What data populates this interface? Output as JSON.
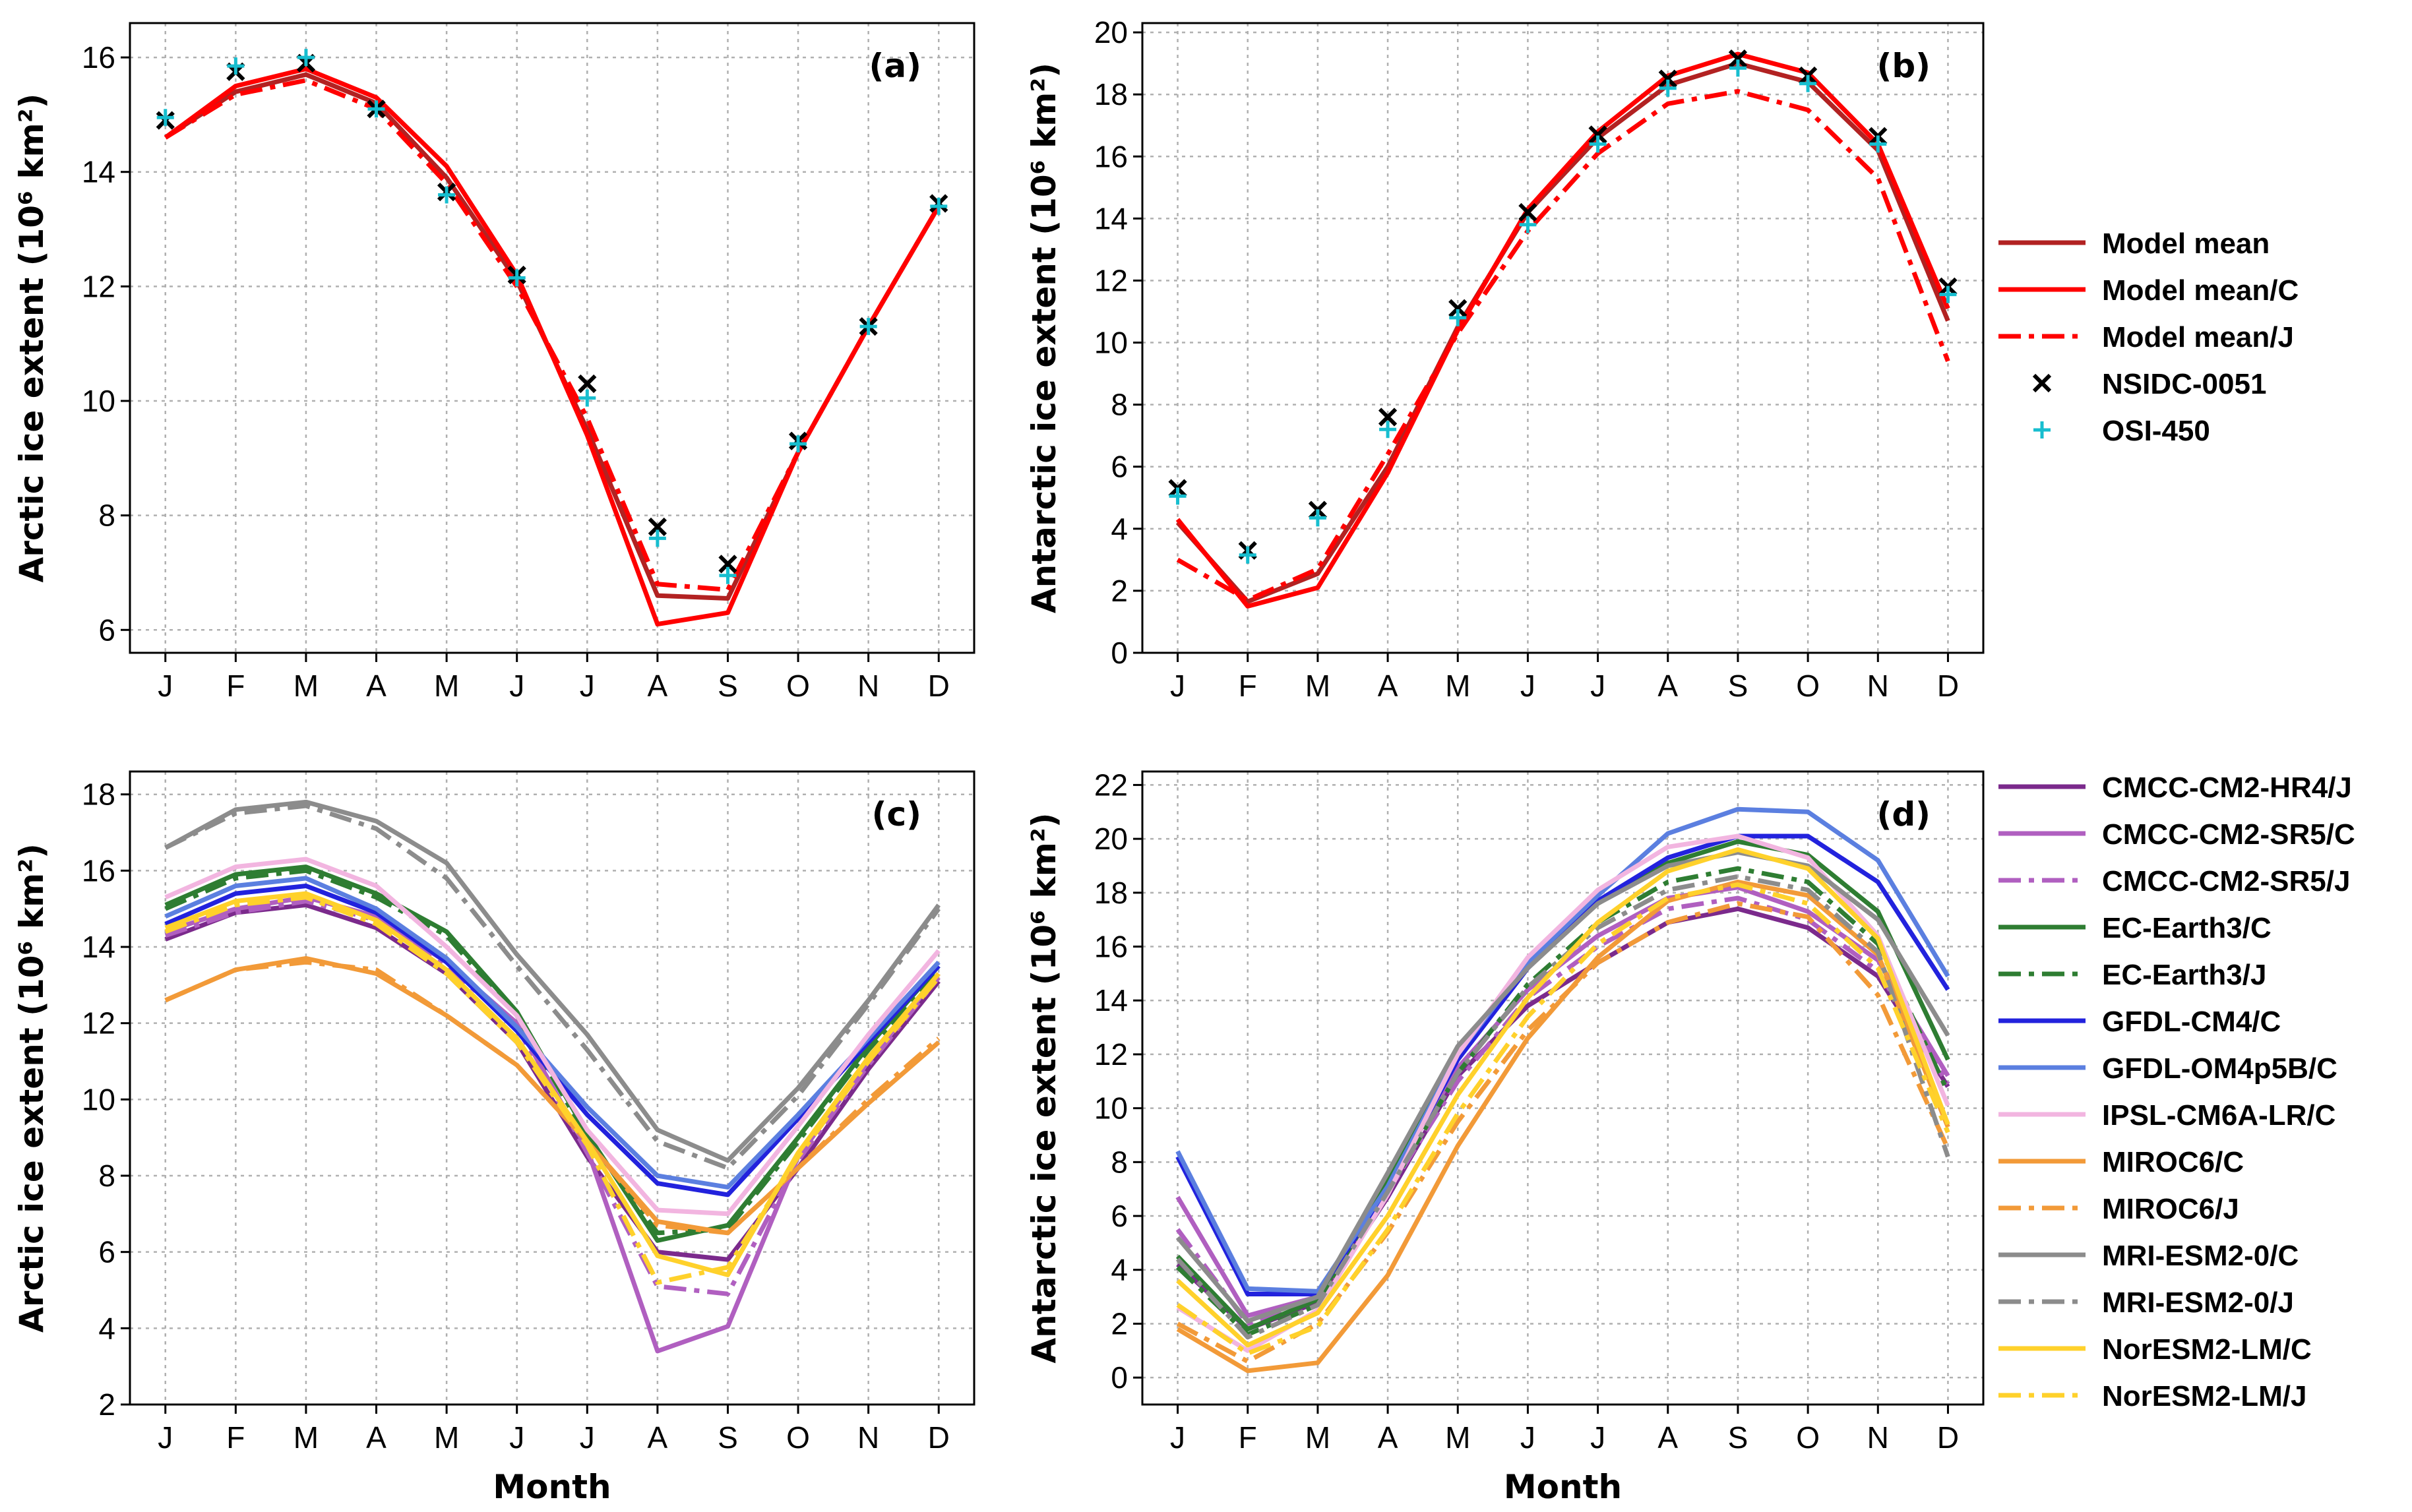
{
  "colors": {
    "model_mean": "#b22222",
    "model_mean_c": "#ff0000",
    "model_mean_j": "#ff0000",
    "nsidc": "#000000",
    "osi": "#17becf"
  },
  "chart_data": [
    {
      "id": "a",
      "panel_label": "(a)",
      "type": "line",
      "categories": [
        "J",
        "F",
        "M",
        "A",
        "M",
        "J",
        "J",
        "A",
        "S",
        "O",
        "N",
        "D"
      ],
      "xlabel": "",
      "ylabel": "Arctic ice extent (10⁶ km²)",
      "ylim": [
        5.6,
        16.6
      ],
      "yticks": [
        6,
        8,
        10,
        12,
        14,
        16
      ],
      "grid": true,
      "series": [
        {
          "name": "Model mean",
          "color": "#b22222",
          "dash": "solid",
          "values": [
            14.6,
            15.4,
            15.7,
            15.2,
            13.9,
            12.1,
            9.5,
            6.6,
            6.55,
            9.1,
            11.3,
            13.4
          ]
        },
        {
          "name": "Model mean/C",
          "color": "#ff0000",
          "dash": "solid",
          "values": [
            14.6,
            15.5,
            15.8,
            15.3,
            14.1,
            12.2,
            9.4,
            6.1,
            6.3,
            9.1,
            11.3,
            13.4
          ]
        },
        {
          "name": "Model mean/J",
          "color": "#ff0000",
          "dash": "dashdot",
          "values": [
            14.6,
            15.35,
            15.6,
            15.1,
            13.8,
            12.0,
            9.7,
            6.8,
            6.7,
            9.1,
            11.3,
            13.4
          ]
        }
      ],
      "markers": [
        {
          "name": "NSIDC-0051",
          "symbol": "x",
          "color": "#000000",
          "values": [
            14.9,
            15.75,
            15.9,
            15.1,
            13.65,
            12.2,
            10.3,
            7.8,
            7.15,
            9.3,
            11.3,
            13.45
          ]
        },
        {
          "name": "OSI-450",
          "symbol": "+",
          "color": "#17becf",
          "values": [
            14.95,
            15.85,
            16.0,
            15.1,
            13.6,
            12.15,
            10.05,
            7.6,
            6.95,
            9.25,
            11.3,
            13.4
          ]
        }
      ]
    },
    {
      "id": "b",
      "panel_label": "(b)",
      "type": "line",
      "categories": [
        "J",
        "F",
        "M",
        "A",
        "M",
        "J",
        "J",
        "A",
        "S",
        "O",
        "N",
        "D"
      ],
      "xlabel": "",
      "ylabel": "Antarctic ice extent (10⁶ km²)",
      "ylim": [
        0,
        20.3
      ],
      "yticks": [
        0,
        2,
        4,
        6,
        8,
        10,
        12,
        14,
        16,
        18,
        20
      ],
      "grid": true,
      "series": [
        {
          "name": "Model mean",
          "color": "#b22222",
          "dash": "solid",
          "values": [
            4.2,
            1.65,
            2.55,
            6.0,
            10.5,
            14.2,
            16.6,
            18.3,
            19.0,
            18.4,
            16.2,
            10.7
          ]
        },
        {
          "name": "Model mean/C",
          "color": "#ff0000",
          "dash": "solid",
          "values": [
            4.3,
            1.5,
            2.1,
            5.8,
            10.4,
            14.3,
            16.8,
            18.6,
            19.3,
            18.7,
            16.4,
            11.1
          ]
        },
        {
          "name": "Model mean/J",
          "color": "#ff0000",
          "dash": "dashdot",
          "values": [
            3.0,
            1.7,
            2.7,
            6.4,
            10.3,
            13.6,
            16.1,
            17.7,
            18.1,
            17.5,
            15.3,
            9.4
          ]
        }
      ],
      "markers": [
        {
          "name": "NSIDC-0051",
          "symbol": "x",
          "color": "#000000",
          "values": [
            5.3,
            3.3,
            4.6,
            7.6,
            11.1,
            14.2,
            16.7,
            18.5,
            19.15,
            18.6,
            16.65,
            11.8
          ]
        },
        {
          "name": "OSI-450",
          "symbol": "+",
          "color": "#17becf",
          "values": [
            5.05,
            3.15,
            4.35,
            7.2,
            10.8,
            13.8,
            16.4,
            18.2,
            18.85,
            18.35,
            16.4,
            11.55
          ]
        }
      ],
      "legend": {
        "placement": "outside-right"
      }
    },
    {
      "id": "c",
      "panel_label": "(c)",
      "type": "line",
      "categories": [
        "J",
        "F",
        "M",
        "A",
        "M",
        "J",
        "J",
        "A",
        "S",
        "O",
        "N",
        "D"
      ],
      "xlabel": "Month",
      "ylabel": "Arctic ice extent (10⁶ km²)",
      "ylim": [
        2,
        18.6
      ],
      "yticks": [
        2,
        4,
        6,
        8,
        10,
        12,
        14,
        16,
        18
      ],
      "grid": true,
      "series": [
        {
          "name": "CMCC-CM2-HR4/J",
          "color": "#7b2a8c",
          "dash": "solid",
          "values": [
            14.2,
            14.9,
            15.1,
            14.5,
            13.3,
            11.5,
            8.5,
            6.0,
            5.8,
            8.2,
            10.8,
            13.1
          ]
        },
        {
          "name": "CMCC-CM2-SR5/C",
          "color": "#b05fc0",
          "dash": "solid",
          "values": [
            14.4,
            15.0,
            15.3,
            14.8,
            13.6,
            12.0,
            8.7,
            3.4,
            4.05,
            8.5,
            11.0,
            13.3
          ]
        },
        {
          "name": "CMCC-CM2-SR5/J",
          "color": "#b05fc0",
          "dash": "dashdot",
          "values": [
            14.3,
            14.9,
            15.2,
            14.7,
            13.5,
            11.9,
            8.6,
            5.1,
            4.9,
            8.4,
            10.9,
            13.2
          ]
        },
        {
          "name": "EC-Earth3/C",
          "color": "#2e7d32",
          "dash": "solid",
          "values": [
            15.1,
            15.9,
            16.1,
            15.4,
            14.4,
            12.3,
            9.1,
            6.3,
            6.7,
            9.0,
            11.4,
            13.5
          ]
        },
        {
          "name": "EC-Earth3/J",
          "color": "#2e7d32",
          "dash": "dashdot",
          "values": [
            15.0,
            15.8,
            16.0,
            15.3,
            14.3,
            12.2,
            9.0,
            6.5,
            6.6,
            8.9,
            11.3,
            13.4
          ]
        },
        {
          "name": "GFDL-CM4/C",
          "color": "#2222dd",
          "dash": "solid",
          "values": [
            14.6,
            15.4,
            15.6,
            14.9,
            13.6,
            11.8,
            9.6,
            7.8,
            7.5,
            9.5,
            11.5,
            13.5
          ]
        },
        {
          "name": "GFDL-OM4p5B/C",
          "color": "#5b7fe0",
          "dash": "solid",
          "values": [
            14.8,
            15.6,
            15.8,
            15.0,
            13.7,
            11.9,
            9.8,
            8.0,
            7.7,
            9.6,
            11.6,
            13.6
          ]
        },
        {
          "name": "IPSL-CM6A-LR/C",
          "color": "#f2b5e0",
          "dash": "solid",
          "values": [
            15.3,
            16.1,
            16.3,
            15.6,
            14.0,
            12.2,
            9.2,
            7.1,
            7.0,
            9.3,
            11.7,
            13.9
          ]
        },
        {
          "name": "MIROC6/C",
          "color": "#f29a38",
          "dash": "solid",
          "values": [
            12.6,
            13.4,
            13.7,
            13.3,
            12.2,
            10.9,
            8.9,
            6.8,
            6.5,
            8.2,
            9.9,
            11.5
          ]
        },
        {
          "name": "MIROC6/J",
          "color": "#f29a38",
          "dash": "dashdot",
          "values": [
            12.6,
            13.4,
            13.6,
            13.4,
            12.2,
            10.9,
            8.9,
            6.7,
            6.5,
            8.2,
            10.0,
            11.6
          ]
        },
        {
          "name": "MRI-ESM2-0/C",
          "color": "#8c8c8c",
          "dash": "solid",
          "values": [
            16.6,
            17.6,
            17.8,
            17.3,
            16.2,
            13.8,
            11.7,
            9.2,
            8.4,
            10.3,
            12.6,
            15.1
          ]
        },
        {
          "name": "MRI-ESM2-0/J",
          "color": "#8c8c8c",
          "dash": "dashdot",
          "values": [
            16.6,
            17.5,
            17.7,
            17.1,
            15.8,
            13.5,
            11.3,
            8.9,
            8.2,
            10.1,
            12.5,
            15.0
          ]
        },
        {
          "name": "NorESM2-LM/C",
          "color": "#ffd12b",
          "dash": "solid",
          "values": [
            14.5,
            15.2,
            15.4,
            14.7,
            13.4,
            11.6,
            8.9,
            5.9,
            5.4,
            8.6,
            11.1,
            13.3
          ]
        },
        {
          "name": "NorESM2-LM/J",
          "color": "#ffd12b",
          "dash": "dashdot",
          "values": [
            14.4,
            15.1,
            15.3,
            14.6,
            13.3,
            11.5,
            8.8,
            5.2,
            5.6,
            8.5,
            11.0,
            13.2
          ]
        }
      ]
    },
    {
      "id": "d",
      "panel_label": "(d)",
      "type": "line",
      "categories": [
        "J",
        "F",
        "M",
        "A",
        "M",
        "J",
        "J",
        "A",
        "S",
        "O",
        "N",
        "D"
      ],
      "xlabel": "Month",
      "ylabel": "Antarctic ice extent (10⁶ km²)",
      "ylim": [
        -1,
        22.5
      ],
      "yticks": [
        0,
        2,
        4,
        6,
        8,
        10,
        12,
        14,
        16,
        18,
        20,
        22
      ],
      "grid": true,
      "series": [
        {
          "name": "CMCC-CM2-HR4/J",
          "color": "#7b2a8c",
          "dash": "solid",
          "values": [
            4.2,
            1.8,
            2.8,
            6.7,
            11.2,
            13.8,
            15.4,
            16.9,
            17.4,
            16.7,
            14.9,
            10.8
          ]
        },
        {
          "name": "CMCC-CM2-SR5/C",
          "color": "#b05fc0",
          "dash": "solid",
          "values": [
            6.7,
            2.3,
            3.0,
            7.2,
            11.5,
            14.4,
            16.4,
            17.8,
            18.2,
            17.3,
            15.5,
            11.2
          ]
        },
        {
          "name": "CMCC-CM2-SR5/J",
          "color": "#b05fc0",
          "dash": "dashdot",
          "values": [
            5.5,
            2.0,
            2.9,
            6.9,
            11.0,
            14.1,
            16.0,
            17.4,
            17.8,
            17.0,
            15.1,
            10.9
          ]
        },
        {
          "name": "EC-Earth3/C",
          "color": "#2e7d32",
          "dash": "solid",
          "values": [
            4.5,
            1.8,
            2.9,
            7.3,
            12.0,
            15.3,
            17.6,
            19.1,
            19.9,
            19.4,
            17.3,
            11.8
          ]
        },
        {
          "name": "EC-Earth3/J",
          "color": "#2e7d32",
          "dash": "dashdot",
          "values": [
            4.1,
            1.6,
            2.7,
            6.9,
            11.3,
            14.6,
            16.9,
            18.4,
            18.9,
            18.4,
            16.1,
            10.6
          ]
        },
        {
          "name": "GFDL-CM4/C",
          "color": "#2222dd",
          "dash": "solid",
          "values": [
            8.2,
            3.1,
            3.1,
            7.0,
            11.8,
            15.2,
            17.7,
            19.3,
            20.1,
            20.1,
            18.4,
            14.4
          ]
        },
        {
          "name": "GFDL-OM4p5B/C",
          "color": "#5b7fe0",
          "dash": "solid",
          "values": [
            8.4,
            3.3,
            3.2,
            7.1,
            12.0,
            15.4,
            17.9,
            20.2,
            21.1,
            21.0,
            19.2,
            14.9
          ]
        },
        {
          "name": "IPSL-CM6A-LR/C",
          "color": "#f2b5e0",
          "dash": "solid",
          "values": [
            2.6,
            1.0,
            2.5,
            6.8,
            12.0,
            15.6,
            18.1,
            19.7,
            20.1,
            19.3,
            16.4,
            10.1
          ]
        },
        {
          "name": "MIROC6/C",
          "color": "#f29a38",
          "dash": "solid",
          "values": [
            1.8,
            0.25,
            0.55,
            3.8,
            8.6,
            12.6,
            15.6,
            17.7,
            18.4,
            17.9,
            15.7,
            9.3
          ]
        },
        {
          "name": "MIROC6/J",
          "color": "#f29a38",
          "dash": "dashdot",
          "values": [
            2.0,
            0.6,
            2.0,
            5.4,
            9.5,
            12.9,
            15.4,
            16.9,
            17.6,
            17.1,
            14.2,
            8.5
          ]
        },
        {
          "name": "MRI-ESM2-0/C",
          "color": "#8c8c8c",
          "dash": "solid",
          "values": [
            5.2,
            2.1,
            3.0,
            7.6,
            12.3,
            15.2,
            17.6,
            19.0,
            19.5,
            19.0,
            17.0,
            12.7
          ]
        },
        {
          "name": "MRI-ESM2-0/J",
          "color": "#8c8c8c",
          "dash": "dashdot",
          "values": [
            4.4,
            1.5,
            2.7,
            6.9,
            11.3,
            14.5,
            16.7,
            18.1,
            18.6,
            18.1,
            15.8,
            8.2
          ]
        },
        {
          "name": "NorESM2-LM/C",
          "color": "#ffd12b",
          "dash": "solid",
          "values": [
            3.6,
            1.2,
            2.4,
            6.0,
            10.5,
            14.1,
            16.9,
            18.8,
            19.6,
            18.9,
            16.3,
            9.4
          ]
        },
        {
          "name": "NorESM2-LM/J",
          "color": "#ffd12b",
          "dash": "dashdot",
          "values": [
            2.7,
            0.9,
            1.9,
            5.5,
            9.8,
            13.4,
            16.1,
            17.8,
            18.3,
            17.6,
            15.2,
            9.1
          ]
        }
      ],
      "legend": {
        "placement": "outside-right"
      }
    }
  ]
}
